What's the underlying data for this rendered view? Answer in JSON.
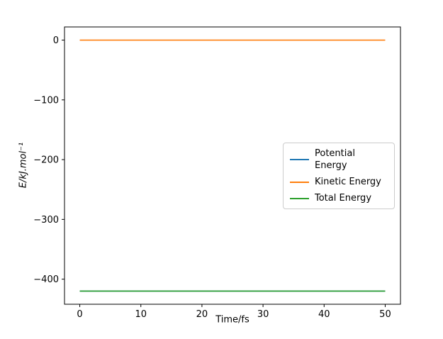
{
  "chart_data": {
    "type": "line",
    "title": "",
    "xlabel": "Time/fs",
    "ylabel": "E/kJ.mol⁻¹",
    "xlim": [
      -2.5,
      52.5
    ],
    "ylim": [
      -442,
      22
    ],
    "x_ticks": [
      0,
      10,
      20,
      30,
      40,
      50
    ],
    "x_tick_labels": [
      "0",
      "10",
      "20",
      "30",
      "40",
      "50"
    ],
    "y_ticks": [
      0,
      -100,
      -200,
      -300,
      -400
    ],
    "y_tick_labels": [
      "0",
      "−100",
      "−200",
      "−300",
      "−400"
    ],
    "grid": false,
    "legend_position": "center right",
    "x": [
      0,
      50
    ],
    "series": [
      {
        "name": "Potential Energy",
        "color": "#1f77b4",
        "values": [
          -420,
          -420
        ]
      },
      {
        "name": "Kinetic Energy",
        "color": "#ff7f0e",
        "values": [
          0,
          0
        ]
      },
      {
        "name": "Total Energy",
        "color": "#2ca02c",
        "values": [
          -420,
          -420
        ]
      }
    ]
  }
}
